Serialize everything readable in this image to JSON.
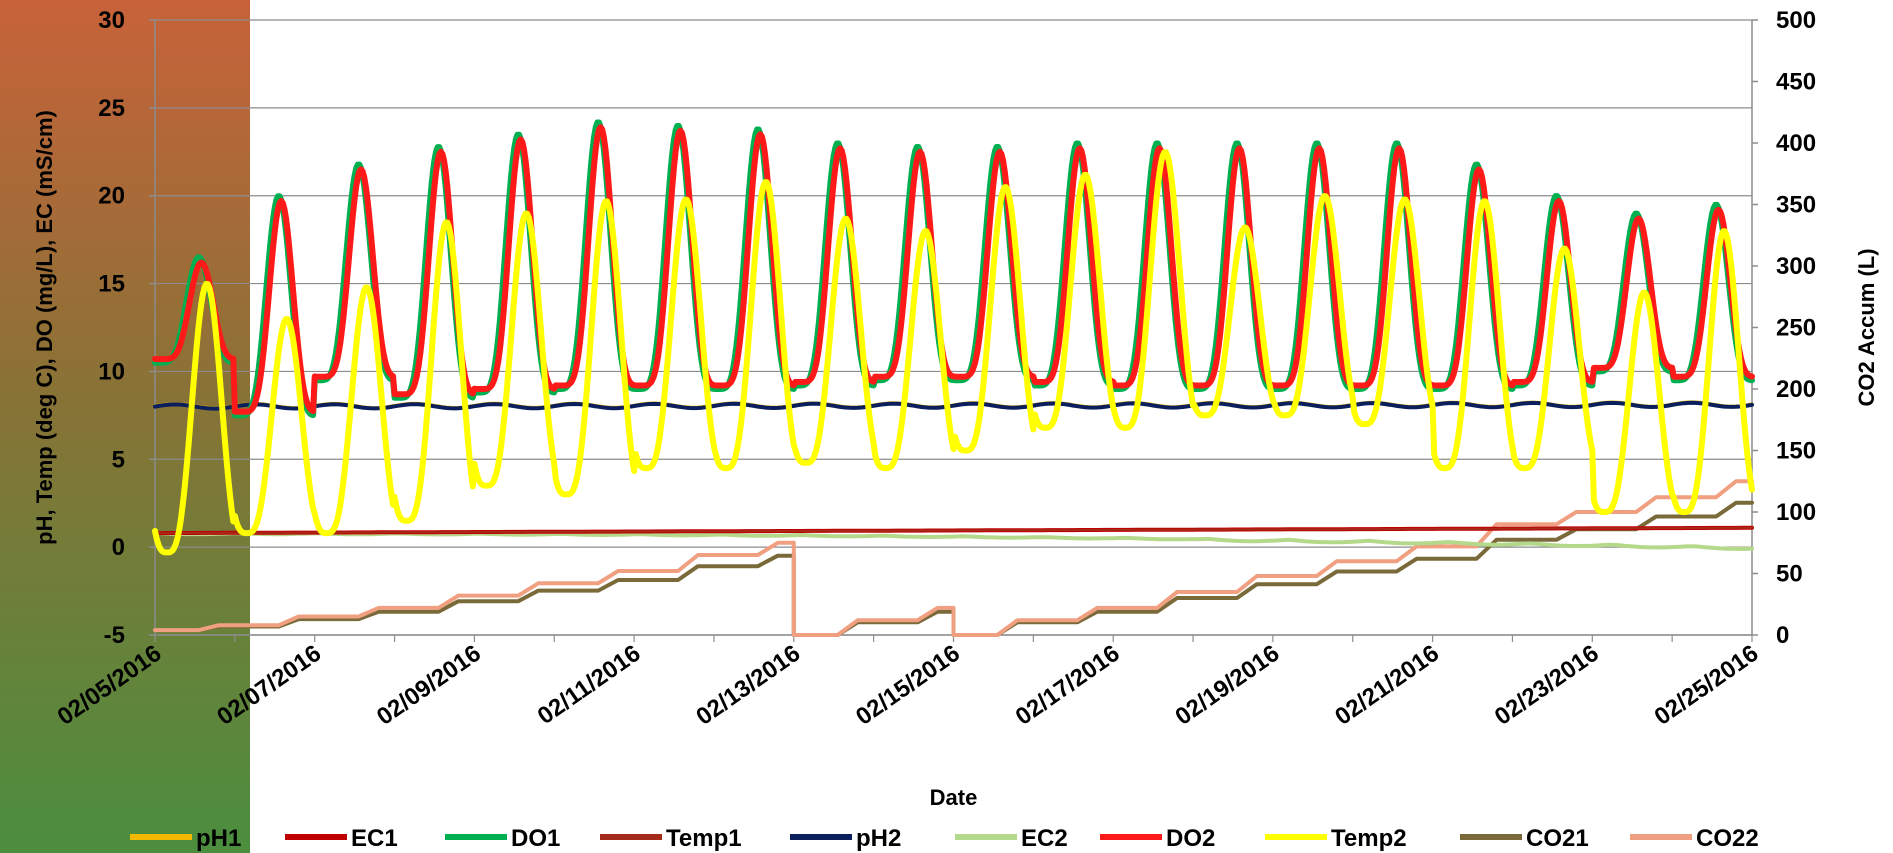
{
  "chart_data": {
    "type": "line",
    "xlabel": "Date",
    "ylabel_left": "pH, Temp (deg C), DO (mg/L), EC (mS/cm)",
    "ylabel_right": "CO2 Accum (L)",
    "x_ticks": [
      "02/05/2016",
      "02/07/2016",
      "02/09/2016",
      "02/11/2016",
      "02/13/2016",
      "02/15/2016",
      "02/17/2016",
      "02/19/2016",
      "02/21/2016",
      "02/23/2016",
      "02/25/2016"
    ],
    "x_range_days": [
      0,
      20
    ],
    "y_left_range": [
      -5,
      30
    ],
    "y_left_ticks": [
      "-5",
      "0",
      "5",
      "10",
      "15",
      "20",
      "25",
      "30"
    ],
    "y_right_range": [
      0,
      500
    ],
    "y_right_ticks": [
      "0",
      "50",
      "100",
      "150",
      "200",
      "250",
      "300",
      "350",
      "400",
      "450",
      "500"
    ],
    "grid": "horizontal major gridlines",
    "legend_position": "bottom",
    "legend": [
      {
        "name": "pH1",
        "color": "#f5b800"
      },
      {
        "name": "EC1",
        "color": "#c00000"
      },
      {
        "name": "DO1",
        "color": "#00b050"
      },
      {
        "name": "Temp1",
        "color": "#a52a1a"
      },
      {
        "name": "pH2",
        "color": "#0b1f5c"
      },
      {
        "name": "EC2",
        "color": "#b5d98a"
      },
      {
        "name": "DO2",
        "color": "#ff1a1a"
      },
      {
        "name": "Temp2",
        "color": "#ffff00"
      },
      {
        "name": "CO21",
        "color": "#7a6a3a"
      },
      {
        "name": "CO22",
        "color": "#f0a080"
      }
    ],
    "series_pH": {
      "level": 8.0,
      "range": [
        7.8,
        8.3
      ]
    },
    "series_EC1": {
      "start": 0.8,
      "end": 1.1
    },
    "series_EC2": {
      "start": 0.8,
      "end": 0.0
    },
    "series_DO_daily_max": [
      16.5,
      20.0,
      21.8,
      22.8,
      23.5,
      24.2,
      24.0,
      23.8,
      23.0,
      22.8,
      22.8,
      23.0,
      23.0,
      23.0,
      23.0,
      23.0,
      21.8,
      20.0,
      19.0,
      19.5
    ],
    "series_DO_daily_min": [
      10.5,
      7.5,
      9.5,
      8.5,
      8.8,
      9.0,
      9.0,
      9.0,
      9.2,
      9.5,
      9.5,
      9.2,
      9.0,
      9.0,
      9.0,
      9.0,
      9.0,
      9.2,
      10.0,
      9.5
    ],
    "series_Temp_daily_max": [
      15.0,
      13.0,
      14.8,
      18.5,
      19.0,
      19.7,
      19.8,
      20.8,
      18.7,
      18.0,
      20.5,
      21.2,
      22.5,
      18.2,
      20.0,
      19.8,
      19.7,
      17.0,
      14.5,
      18.0
    ],
    "series_Temp_daily_min": [
      -0.3,
      0.8,
      0.8,
      1.5,
      3.5,
      3.0,
      4.5,
      4.5,
      4.8,
      4.5,
      5.5,
      6.8,
      6.8,
      7.5,
      7.5,
      7.0,
      4.5,
      4.5,
      2.0,
      2.0
    ],
    "series_CO2_daily_max_L": [
      8,
      15,
      22,
      32,
      42,
      52,
      65,
      75,
      12,
      22,
      12,
      22,
      35,
      48,
      60,
      72,
      90,
      100,
      112,
      125
    ]
  }
}
